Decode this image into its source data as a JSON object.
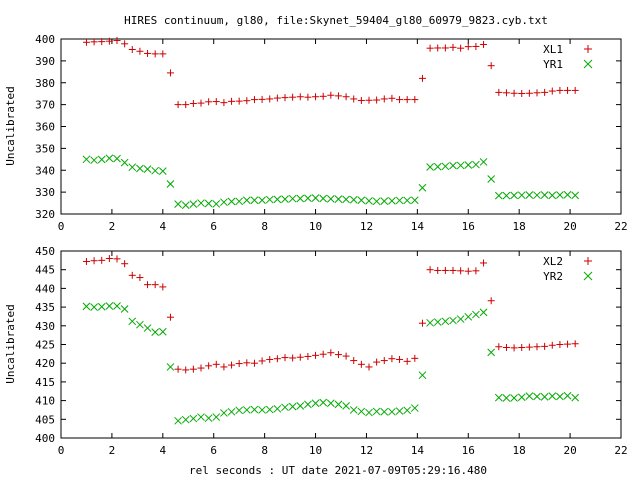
{
  "page_title": "HIRES continuum, gl80, file:Skynet_59404_gl80_60979_9823.cyb.txt",
  "xlabel": "rel seconds : UT date 2021-07-09T05:29:16.480",
  "chart_data": [
    {
      "type": "scatter",
      "ylabel": "Uncalibrated",
      "xlim": [
        0,
        22
      ],
      "ylim": [
        320,
        400
      ],
      "xticks": [
        0,
        2,
        4,
        6,
        8,
        10,
        12,
        14,
        16,
        18,
        20,
        22
      ],
      "yticks": [
        320,
        330,
        340,
        350,
        360,
        370,
        380,
        390,
        400
      ],
      "legend_position": "top-right",
      "series": [
        {
          "name": "XL1",
          "marker": "plus",
          "color": "#cc0000",
          "x": [
            1.0,
            1.3,
            1.6,
            1.9,
            2.2,
            2.5,
            2.8,
            3.1,
            3.4,
            3.7,
            4.0,
            4.3,
            4.6,
            4.9,
            5.2,
            5.5,
            5.8,
            6.1,
            6.4,
            6.7,
            7.0,
            7.3,
            7.6,
            7.9,
            8.2,
            8.5,
            8.8,
            9.1,
            9.4,
            9.7,
            10.0,
            10.3,
            10.6,
            10.9,
            11.2,
            11.5,
            11.8,
            12.1,
            12.4,
            12.7,
            13.0,
            13.3,
            13.6,
            13.9,
            14.2,
            14.5,
            14.8,
            15.1,
            15.4,
            15.7,
            16.0,
            16.3,
            16.6,
            16.9,
            17.2,
            17.5,
            17.8,
            18.1,
            18.4,
            18.7,
            19.0,
            19.3,
            19.6,
            19.9,
            20.2
          ],
          "y": [
            398.5,
            398.7,
            398.8,
            399.0,
            399.3,
            397.8,
            395.2,
            394.4,
            393.4,
            393.2,
            393.2,
            384.5,
            370.0,
            370.0,
            370.5,
            370.7,
            371.3,
            371.4,
            370.9,
            371.5,
            371.6,
            371.8,
            372.3,
            372.4,
            372.6,
            373.0,
            373.2,
            373.4,
            373.6,
            373.4,
            373.6,
            373.8,
            374.3,
            374.0,
            373.6,
            372.6,
            371.9,
            372.0,
            372.1,
            372.6,
            372.9,
            372.3,
            372.3,
            372.3,
            382.0,
            395.8,
            395.9,
            395.9,
            396.2,
            395.8,
            396.5,
            396.6,
            397.5,
            387.8,
            375.6,
            375.4,
            375.2,
            375.1,
            375.2,
            375.4,
            375.6,
            376.2,
            376.5,
            376.5,
            376.5
          ]
        },
        {
          "name": "YR1",
          "marker": "cross",
          "color": "#00aa00",
          "x": [
            1.0,
            1.3,
            1.6,
            1.9,
            2.2,
            2.5,
            2.8,
            3.1,
            3.4,
            3.7,
            4.0,
            4.3,
            4.6,
            4.9,
            5.2,
            5.5,
            5.8,
            6.1,
            6.4,
            6.7,
            7.0,
            7.3,
            7.6,
            7.9,
            8.2,
            8.5,
            8.8,
            9.1,
            9.4,
            9.7,
            10.0,
            10.3,
            10.6,
            10.9,
            11.2,
            11.5,
            11.8,
            12.1,
            12.4,
            12.7,
            13.0,
            13.3,
            13.6,
            13.9,
            14.2,
            14.5,
            14.8,
            15.1,
            15.4,
            15.7,
            16.0,
            16.3,
            16.6,
            16.9,
            17.2,
            17.5,
            17.8,
            18.1,
            18.4,
            18.7,
            19.0,
            19.3,
            19.6,
            19.9,
            20.2
          ],
          "y": [
            345.0,
            344.6,
            344.9,
            345.5,
            345.3,
            343.5,
            341.4,
            340.8,
            340.5,
            339.8,
            339.6,
            333.7,
            324.5,
            324.0,
            324.5,
            325.0,
            324.8,
            324.6,
            325.4,
            325.7,
            325.8,
            326.3,
            326.3,
            326.3,
            326.6,
            326.7,
            326.8,
            327.0,
            327.1,
            327.2,
            327.3,
            327.1,
            326.9,
            326.8,
            326.7,
            326.5,
            326.3,
            326.0,
            325.8,
            325.9,
            326.0,
            326.2,
            326.2,
            326.3,
            332.0,
            341.5,
            341.6,
            341.8,
            342.1,
            342.2,
            342.4,
            342.6,
            343.8,
            336.0,
            328.4,
            328.4,
            328.5,
            328.6,
            328.7,
            328.6,
            328.7,
            328.5,
            328.7,
            328.8,
            328.5
          ]
        }
      ]
    },
    {
      "type": "scatter",
      "ylabel": "Uncalibrated",
      "xlim": [
        0,
        22
      ],
      "ylim": [
        400,
        450
      ],
      "xticks": [
        0,
        2,
        4,
        6,
        8,
        10,
        12,
        14,
        16,
        18,
        20,
        22
      ],
      "yticks": [
        400,
        405,
        410,
        415,
        420,
        425,
        430,
        435,
        440,
        445,
        450
      ],
      "legend_position": "top-right",
      "series": [
        {
          "name": "XL2",
          "marker": "plus",
          "color": "#cc0000",
          "x": [
            1.0,
            1.3,
            1.6,
            1.9,
            2.2,
            2.5,
            2.8,
            3.1,
            3.4,
            3.7,
            4.0,
            4.3,
            4.6,
            4.9,
            5.2,
            5.5,
            5.8,
            6.1,
            6.4,
            6.7,
            7.0,
            7.3,
            7.6,
            7.9,
            8.2,
            8.5,
            8.8,
            9.1,
            9.4,
            9.7,
            10.0,
            10.3,
            10.6,
            10.9,
            11.2,
            11.5,
            11.8,
            12.1,
            12.4,
            12.7,
            13.0,
            13.3,
            13.6,
            13.9,
            14.2,
            14.5,
            14.8,
            15.1,
            15.4,
            15.7,
            16.0,
            16.3,
            16.6,
            16.9,
            17.2,
            17.5,
            17.8,
            18.1,
            18.4,
            18.7,
            19.0,
            19.3,
            19.6,
            19.9,
            20.2
          ],
          "y": [
            447.2,
            447.4,
            447.5,
            448.0,
            447.9,
            446.6,
            443.5,
            442.9,
            441.0,
            441.0,
            440.4,
            432.3,
            418.4,
            418.2,
            418.4,
            418.7,
            419.3,
            419.7,
            419.0,
            419.5,
            419.9,
            420.1,
            420.0,
            420.6,
            421.0,
            421.2,
            421.5,
            421.4,
            421.6,
            421.8,
            422.1,
            422.4,
            422.8,
            422.3,
            421.9,
            420.7,
            419.7,
            419.0,
            420.3,
            420.7,
            421.2,
            421.0,
            420.5,
            421.3,
            430.7,
            445.0,
            444.8,
            444.8,
            444.8,
            444.7,
            444.6,
            444.7,
            446.8,
            436.7,
            424.4,
            424.2,
            424.1,
            424.2,
            424.3,
            424.4,
            424.5,
            424.8,
            425.0,
            425.1,
            425.2
          ]
        },
        {
          "name": "YR2",
          "marker": "cross",
          "color": "#00aa00",
          "x": [
            1.0,
            1.3,
            1.6,
            1.9,
            2.2,
            2.5,
            2.8,
            3.1,
            3.4,
            3.7,
            4.0,
            4.3,
            4.6,
            4.9,
            5.2,
            5.5,
            5.8,
            6.1,
            6.4,
            6.7,
            7.0,
            7.3,
            7.6,
            7.9,
            8.2,
            8.5,
            8.8,
            9.1,
            9.4,
            9.7,
            10.0,
            10.3,
            10.6,
            10.9,
            11.2,
            11.5,
            11.8,
            12.1,
            12.4,
            12.7,
            13.0,
            13.3,
            13.6,
            13.9,
            14.2,
            14.5,
            14.8,
            15.1,
            15.4,
            15.7,
            16.0,
            16.3,
            16.6,
            16.9,
            17.2,
            17.5,
            17.8,
            18.1,
            18.4,
            18.7,
            19.0,
            19.3,
            19.6,
            19.9,
            20.2
          ],
          "y": [
            435.2,
            435.0,
            435.1,
            435.3,
            435.3,
            434.5,
            431.2,
            430.3,
            429.4,
            428.3,
            428.4,
            419.0,
            404.6,
            404.9,
            405.2,
            405.6,
            405.3,
            405.6,
            406.7,
            407.0,
            407.4,
            407.5,
            407.6,
            407.5,
            407.6,
            407.8,
            408.2,
            408.4,
            408.6,
            409.0,
            409.3,
            409.5,
            409.3,
            409.0,
            408.6,
            407.5,
            407.1,
            406.8,
            407.1,
            407.0,
            407.0,
            407.2,
            407.4,
            408.0,
            416.8,
            430.8,
            431.0,
            431.2,
            431.4,
            431.8,
            432.4,
            433.0,
            433.6,
            422.9,
            410.8,
            410.7,
            410.7,
            410.9,
            411.2,
            411.1,
            411.0,
            411.2,
            411.1,
            411.3,
            410.8
          ]
        }
      ]
    }
  ]
}
